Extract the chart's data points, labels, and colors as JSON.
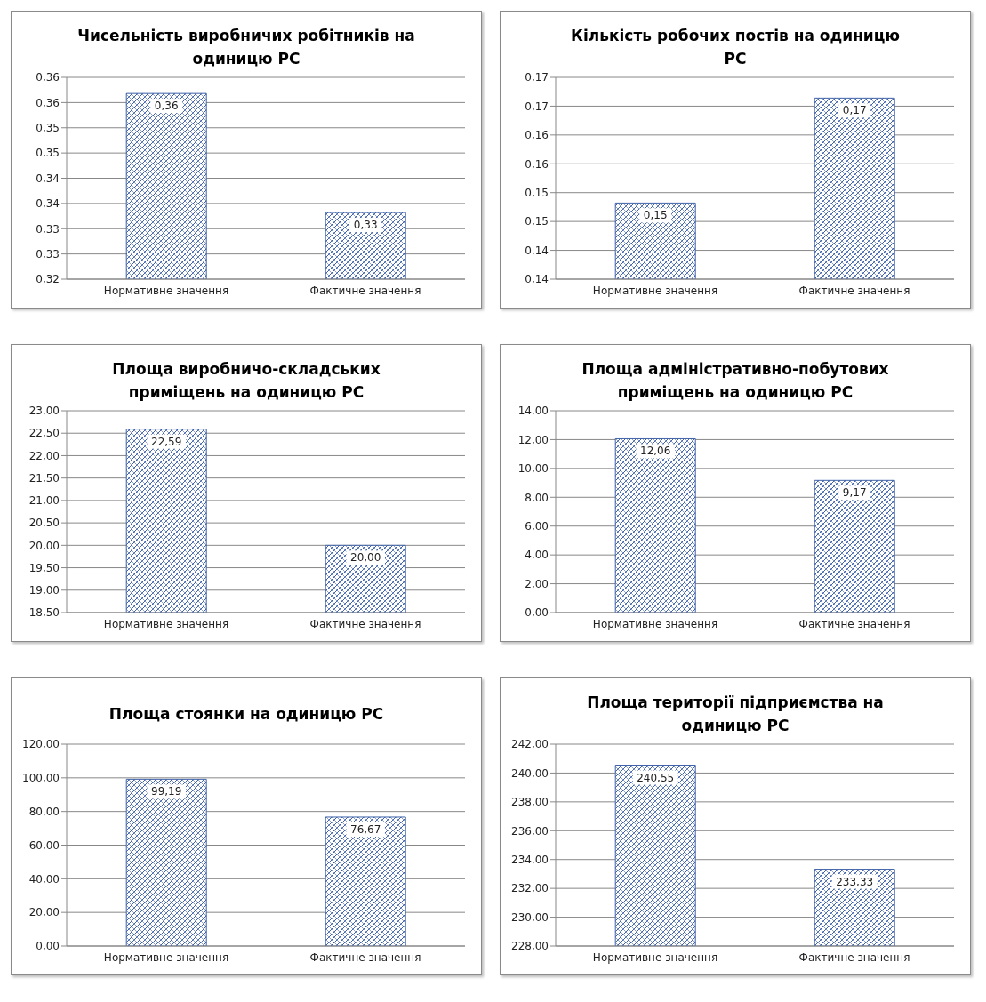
{
  "chart_data": [
    {
      "type": "bar",
      "title": "Чисельність виробничих робітників на одиницю РС",
      "categories": [
        "Нормативне значення",
        "Фактичне значення"
      ],
      "values": [
        0.3568,
        0.3332
      ],
      "value_labels": [
        "0,36",
        "0,33"
      ],
      "color": "#3f62a8",
      "ylim": [
        0.32,
        0.36
      ],
      "yticks": [
        {
          "value": 0.32,
          "label": "0,32"
        },
        {
          "value": 0.325,
          "label": "0,33"
        },
        {
          "value": 0.33,
          "label": "0,33"
        },
        {
          "value": 0.335,
          "label": "0,34"
        },
        {
          "value": 0.34,
          "label": "0,34"
        },
        {
          "value": 0.345,
          "label": "0,35"
        },
        {
          "value": 0.35,
          "label": "0,35"
        },
        {
          "value": 0.355,
          "label": "0,36"
        },
        {
          "value": 0.36,
          "label": "0,36"
        }
      ],
      "grid": "y"
    },
    {
      "type": "bar",
      "title": "Кількість робочих постів на одиницю РС",
      "categories": [
        "Нормативне значення",
        "Фактичне значення"
      ],
      "values": [
        0.1532,
        0.1714
      ],
      "value_labels": [
        "0,15",
        "0,17"
      ],
      "color": "#3f62a8",
      "ylim": [
        0.14,
        0.175
      ],
      "yticks": [
        {
          "value": 0.14,
          "label": "0,14"
        },
        {
          "value": 0.145,
          "label": "0,14"
        },
        {
          "value": 0.15,
          "label": "0,15"
        },
        {
          "value": 0.155,
          "label": "0,15"
        },
        {
          "value": 0.16,
          "label": "0,16"
        },
        {
          "value": 0.165,
          "label": "0,16"
        },
        {
          "value": 0.17,
          "label": "0,17"
        },
        {
          "value": 0.175,
          "label": "0,17"
        }
      ],
      "grid": "y"
    },
    {
      "type": "bar",
      "title": "Площа виробничо-складських приміщень на одиницю РС",
      "categories": [
        "Нормативне значення",
        "Фактичне значення"
      ],
      "values": [
        22.59,
        20.0
      ],
      "value_labels": [
        "22,59",
        "20,00"
      ],
      "color": "#3f62a8",
      "ylim": [
        18.5,
        23
      ],
      "yticks": [
        {
          "value": 18.5,
          "label": "18,50"
        },
        {
          "value": 19,
          "label": "19,00"
        },
        {
          "value": 19.5,
          "label": "19,50"
        },
        {
          "value": 20,
          "label": "20,00"
        },
        {
          "value": 20.5,
          "label": "20,50"
        },
        {
          "value": 21,
          "label": "21,00"
        },
        {
          "value": 21.5,
          "label": "21,50"
        },
        {
          "value": 22,
          "label": "22,00"
        },
        {
          "value": 22.5,
          "label": "22,50"
        },
        {
          "value": 23,
          "label": "23,00"
        }
      ],
      "grid": "y"
    },
    {
      "type": "bar",
      "title": "Площа адміністративно-побутових приміщень на одиницю РС",
      "categories": [
        "Нормативне значення",
        "Фактичне значення"
      ],
      "values": [
        12.06,
        9.17
      ],
      "value_labels": [
        "12,06",
        "9,17"
      ],
      "color": "#3f62a8",
      "ylim": [
        0,
        14
      ],
      "yticks": [
        {
          "value": 0,
          "label": "0,00"
        },
        {
          "value": 2,
          "label": "2,00"
        },
        {
          "value": 4,
          "label": "4,00"
        },
        {
          "value": 6,
          "label": "6,00"
        },
        {
          "value": 8,
          "label": "8,00"
        },
        {
          "value": 10,
          "label": "10,00"
        },
        {
          "value": 12,
          "label": "12,00"
        },
        {
          "value": 14,
          "label": "14,00"
        }
      ],
      "grid": "y"
    },
    {
      "type": "bar",
      "title": "Площа стоянки на одиницю РС",
      "categories": [
        "Нормативне значення",
        "Фактичне значення"
      ],
      "values": [
        99.19,
        76.67
      ],
      "value_labels": [
        "99,19",
        "76,67"
      ],
      "color": "#3f62a8",
      "ylim": [
        0,
        120
      ],
      "yticks": [
        {
          "value": 0,
          "label": "0,00"
        },
        {
          "value": 20,
          "label": "20,00"
        },
        {
          "value": 40,
          "label": "40,00"
        },
        {
          "value": 60,
          "label": "60,00"
        },
        {
          "value": 80,
          "label": "80,00"
        },
        {
          "value": 100,
          "label": "100,00"
        },
        {
          "value": 120,
          "label": "120,00"
        }
      ],
      "grid": "y"
    },
    {
      "type": "bar",
      "title": "Площа території підприємства на одиницю РС",
      "categories": [
        "Нормативне значення",
        "Фактичне значення"
      ],
      "values": [
        240.55,
        233.33
      ],
      "value_labels": [
        "240,55",
        "233,33"
      ],
      "color": "#3f62a8",
      "ylim": [
        228,
        242
      ],
      "yticks": [
        {
          "value": 228,
          "label": "228,00"
        },
        {
          "value": 230,
          "label": "230,00"
        },
        {
          "value": 232,
          "label": "232,00"
        },
        {
          "value": 234,
          "label": "234,00"
        },
        {
          "value": 236,
          "label": "236,00"
        },
        {
          "value": 238,
          "label": "238,00"
        },
        {
          "value": 240,
          "label": "240,00"
        },
        {
          "value": 242,
          "label": "242,00"
        }
      ],
      "grid": "y"
    }
  ]
}
